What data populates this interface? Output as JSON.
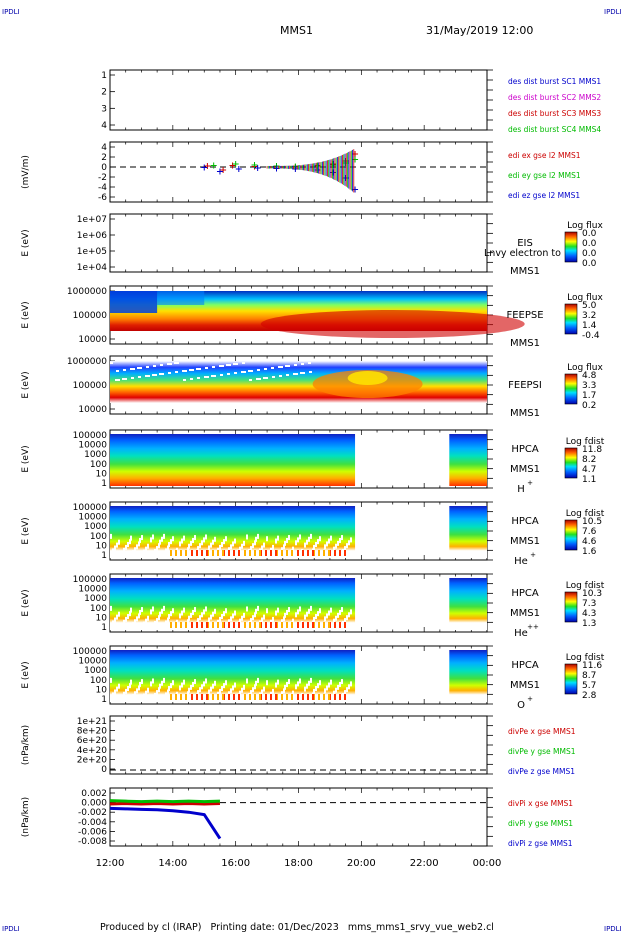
{
  "corner_label": "IPDLI",
  "header": {
    "spacecraft": "MMS1",
    "datetime": "31/May/2019 12:00"
  },
  "footer": {
    "text": "Produced by cl (IRAP)   Printing date: 01/Dec/2023   mms_mms1_srvy_vue_web2.cl"
  },
  "time_axis": {
    "ticks": [
      "12:00",
      "14:00",
      "16:00",
      "18:00",
      "20:00",
      "22:00",
      "00:00"
    ],
    "hours": [
      0,
      2,
      4,
      6,
      8,
      10,
      12
    ]
  },
  "colors": {
    "blue": "#0000cc",
    "magenta": "#cc00cc",
    "red": "#cc0000",
    "green": "#00bb00"
  },
  "chart_data": [
    {
      "type": "line",
      "panel": "des-dist-burst",
      "ylabel": "",
      "ylim": [
        0.5,
        4.5
      ],
      "yticks": [
        "1",
        "2",
        "3",
        "4"
      ],
      "legend": [
        {
          "name": "des dist burst SC1 MMS1",
          "color": "#0000cc"
        },
        {
          "name": "des dist burst SC2 MMS2",
          "color": "#cc00cc"
        },
        {
          "name": "des dist burst SC3 MMS3",
          "color": "#cc0000"
        },
        {
          "name": "des dist burst SC4 MMS4",
          "color": "#00bb00"
        }
      ],
      "series": []
    },
    {
      "type": "scatter",
      "panel": "edi-e",
      "ylabel": "(mV/m)",
      "ylim": [
        -6,
        4
      ],
      "yticks": [
        "4",
        "2",
        "0",
        "-2",
        "-4",
        "-6"
      ],
      "legend": [
        {
          "name": "edi ex gse l2 MMS1",
          "color": "#cc0000"
        },
        {
          "name": "edi ey gse l2 MMS1",
          "color": "#00bb00"
        },
        {
          "name": "edi ez gse l2 MMS1",
          "color": "#0000cc"
        }
      ],
      "series": [
        {
          "name": "edi ex gse l2 MMS1",
          "x": [
            3.1,
            3.6,
            3.9,
            4.6,
            5.3,
            5.9,
            6.6,
            7.1,
            7.5,
            7.8
          ],
          "values": [
            0.2,
            -0.6,
            0.3,
            0.1,
            0.2,
            0.0,
            0.3,
            0.6,
            1.2,
            2.6
          ]
        },
        {
          "name": "edi ey gse l2 MMS1",
          "x": [
            3.3,
            4.0,
            4.6,
            5.3,
            5.9,
            6.6,
            7.1,
            7.5,
            7.8
          ],
          "values": [
            0.3,
            0.6,
            0.4,
            0.2,
            0.1,
            0.2,
            0.4,
            0.8,
            1.5
          ]
        },
        {
          "name": "edi ez gse l2 MMS1",
          "x": [
            3.0,
            3.5,
            4.1,
            4.7,
            5.3,
            5.9,
            6.6,
            7.1,
            7.5,
            7.8
          ],
          "values": [
            -0.1,
            -0.9,
            -0.4,
            -0.2,
            -0.3,
            -0.4,
            -0.6,
            -1.1,
            -2.2,
            -4.5
          ]
        }
      ]
    },
    {
      "type": "heatmap",
      "panel": "eis",
      "ylabel": "E (eV)",
      "yticks": [
        "1e+07",
        "1e+06",
        "1e+05",
        "1e+04"
      ],
      "labels": [
        "EIS",
        "MMS1"
      ],
      "overlay_text": "Lnvy electron to",
      "colorbar": {
        "title": "Log flux",
        "ticks": [
          "0.0",
          "0.0",
          "0.0",
          "0.0"
        ]
      }
    },
    {
      "type": "heatmap",
      "panel": "feepse",
      "ylabel": "E (eV)",
      "yticks": [
        "1000000",
        "100000",
        "10000"
      ],
      "labels": [
        "FEEPSE",
        "MMS1"
      ],
      "colorbar": {
        "title": "Log flux",
        "ticks": [
          "5.0",
          "3.2",
          "1.4",
          "-0.4"
        ]
      }
    },
    {
      "type": "heatmap",
      "panel": "feepsi",
      "ylabel": "E (eV)",
      "yticks": [
        "1000000",
        "100000",
        "10000"
      ],
      "labels": [
        "FEEPSI",
        "MMS1"
      ],
      "colorbar": {
        "title": "Log flux",
        "ticks": [
          "4.8",
          "3.3",
          "1.7",
          "0.2"
        ]
      }
    },
    {
      "type": "heatmap",
      "panel": "hpca-h",
      "ylabel": "E (eV)",
      "yticks": [
        "100000",
        "10000",
        "1000",
        "100",
        "10",
        "1"
      ],
      "labels": [
        "HPCA",
        "MMS1",
        "H",
        "+"
      ],
      "gap_hours": [
        7.8,
        10.8
      ],
      "colorbar": {
        "title": "Log fdist",
        "ticks": [
          "11.8",
          "8.2",
          "4.7",
          "1.1"
        ]
      }
    },
    {
      "type": "heatmap",
      "panel": "hpca-he",
      "ylabel": "E (eV)",
      "yticks": [
        "100000",
        "10000",
        "1000",
        "100",
        "10",
        "1"
      ],
      "labels": [
        "HPCA",
        "MMS1",
        "He",
        "+"
      ],
      "gap_hours": [
        7.8,
        10.8
      ],
      "colorbar": {
        "title": "Log fdist",
        "ticks": [
          "10.5",
          "7.6",
          "4.6",
          "1.6"
        ]
      }
    },
    {
      "type": "heatmap",
      "panel": "hpca-hepp",
      "ylabel": "E (eV)",
      "yticks": [
        "100000",
        "10000",
        "1000",
        "100",
        "10",
        "1"
      ],
      "labels": [
        "HPCA",
        "MMS1",
        "He",
        "++"
      ],
      "gap_hours": [
        7.8,
        10.8
      ],
      "colorbar": {
        "title": "Log fdist",
        "ticks": [
          "10.3",
          "7.3",
          "4.3",
          "1.3"
        ]
      }
    },
    {
      "type": "heatmap",
      "panel": "hpca-o",
      "ylabel": "E (eV)",
      "yticks": [
        "100000",
        "10000",
        "1000",
        "100",
        "10",
        "1"
      ],
      "labels": [
        "HPCA",
        "MMS1",
        "O",
        "+"
      ],
      "gap_hours": [
        7.8,
        10.8
      ],
      "colorbar": {
        "title": "Log fdist",
        "ticks": [
          "11.6",
          "8.7",
          "5.7",
          "2.8"
        ]
      }
    },
    {
      "type": "line",
      "panel": "divpe",
      "ylabel": "(nPa/km)",
      "ylim": [
        -1e+20,
        1.1e+21
      ],
      "yticks": [
        "1e+21",
        "8e+20",
        "6e+20",
        "4e+20",
        "2e+20",
        "0"
      ],
      "legend": [
        {
          "name": "divPe x gse MMS1",
          "color": "#cc0000"
        },
        {
          "name": "divPe y gse MMS1",
          "color": "#00bb00"
        },
        {
          "name": "divPe z gse MMS1",
          "color": "#0000cc"
        }
      ],
      "series": []
    },
    {
      "type": "line",
      "panel": "divpi",
      "ylabel": "(nPa/km)",
      "ylim": [
        -0.008,
        0.002
      ],
      "yticks": [
        "0.002",
        "0.000",
        "-0.002",
        "-0.004",
        "-0.006",
        "-0.008"
      ],
      "legend": [
        {
          "name": "divPi x gse MMS1",
          "color": "#cc0000"
        },
        {
          "name": "divPi y gse MMS1",
          "color": "#00bb00"
        },
        {
          "name": "divPi z gse MMS1",
          "color": "#0000cc"
        }
      ],
      "series": [
        {
          "name": "divPi x gse MMS1",
          "x": [
            0,
            0.5,
            1,
            1.5,
            2,
            2.5,
            3,
            3.5
          ],
          "values": [
            -0.0003,
            -0.0002,
            -0.0003,
            -0.0002,
            -0.0003,
            -0.0002,
            -0.0003,
            -0.0002
          ]
        },
        {
          "name": "divPi y gse MMS1",
          "x": [
            0,
            0.5,
            1,
            1.5,
            2,
            2.5,
            3,
            3.5
          ],
          "values": [
            0.0004,
            0.0003,
            0.0002,
            0.0003,
            0.0002,
            0.0003,
            0.0002,
            0.0003
          ]
        },
        {
          "name": "divPi z gse MMS1",
          "x": [
            0,
            0.5,
            1,
            1.5,
            2,
            2.5,
            3,
            3.5
          ],
          "values": [
            -0.0012,
            -0.0013,
            -0.0014,
            -0.0015,
            -0.0017,
            -0.002,
            -0.0025,
            -0.0075
          ]
        }
      ]
    }
  ]
}
